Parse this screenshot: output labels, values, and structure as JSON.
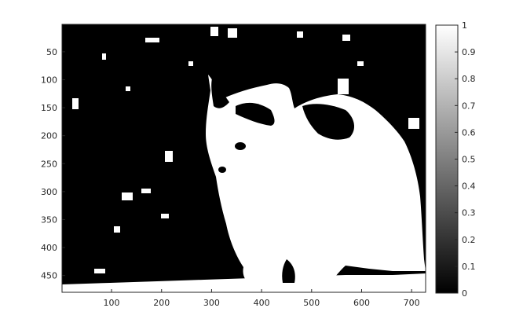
{
  "chart_data": {
    "type": "heatmap",
    "title": "",
    "xlabel": "",
    "ylabel": "",
    "colormap": "gray",
    "description_of_content": "",
    "xlim": [
      1,
      728
    ],
    "ylim": [
      480,
      1
    ],
    "y_reversed": true,
    "x_ticks": [
      "100",
      "200",
      "300",
      "400",
      "500",
      "600",
      "700"
    ],
    "y_ticks": [
      "50",
      "100",
      "150",
      "200",
      "250",
      "300",
      "350",
      "400",
      "450"
    ],
    "colorbar": {
      "range": [
        0,
        1
      ],
      "ticks": [
        "0",
        "0.1",
        "0.2",
        "0.3",
        "0.4",
        "0.5",
        "0.6",
        "0.7",
        "0.8",
        "0.9",
        "1"
      ]
    },
    "binary_image": true,
    "foreground_value": 1,
    "background_value": 0
  },
  "colors": {
    "background": "#000000",
    "foreground": "#ffffff",
    "axis": "#262626"
  }
}
